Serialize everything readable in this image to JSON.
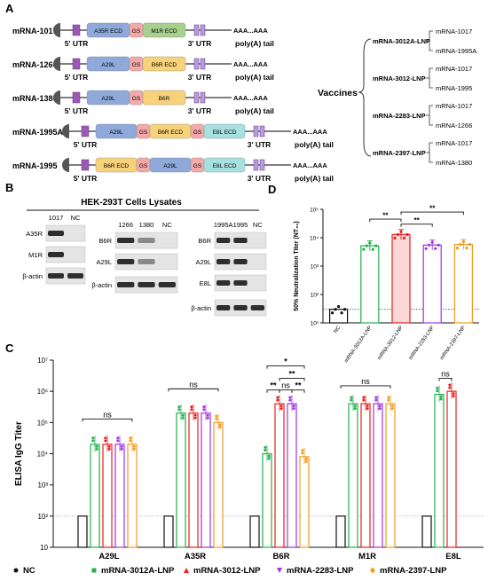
{
  "panels": {
    "A": "A",
    "B": "B",
    "C": "C",
    "D": "D"
  },
  "constructs": [
    {
      "name": "mRNA-1017",
      "segments": [
        {
          "label": "A35R ECD",
          "kind": "blue"
        },
        {
          "label": "GS",
          "kind": "gs"
        },
        {
          "label": "M1R ECD",
          "kind": "green"
        }
      ],
      "utr5": "5' UTR",
      "utr3": "3' UTR",
      "polyA": "AAA...AAA",
      "tail": "poly(A) tail"
    },
    {
      "name": "mRNA-1266",
      "segments": [
        {
          "label": "A29L",
          "kind": "blue"
        },
        {
          "label": "GS",
          "kind": "gs"
        },
        {
          "label": "B6R ECD",
          "kind": "yellow"
        }
      ],
      "utr5": "5' UTR",
      "utr3": "3' UTR",
      "polyA": "AAA...AAA",
      "tail": "poly(A) tail"
    },
    {
      "name": "mRNA-1380",
      "segments": [
        {
          "label": "A29L",
          "kind": "blue"
        },
        {
          "label": "GS",
          "kind": "gs"
        },
        {
          "label": "B6R",
          "kind": "yellow"
        }
      ],
      "utr5": "5' UTR",
      "utr3": "3' UTR",
      "polyA": "AAA...AAA",
      "tail": "poly(A) tail"
    },
    {
      "name": "mRNA-1995A",
      "segments": [
        {
          "label": "A29L",
          "kind": "blue"
        },
        {
          "label": "GS",
          "kind": "gs"
        },
        {
          "label": "B6R ECD",
          "kind": "yellow"
        },
        {
          "label": "GS",
          "kind": "gs"
        },
        {
          "label": "E8L ECD",
          "kind": "teal"
        }
      ],
      "utr5": "5' UTR",
      "utr3": "3' UTR",
      "polyA": "AAA...AAA",
      "tail": "poly(A) tail"
    },
    {
      "name": "mRNA-1995",
      "segments": [
        {
          "label": "B6R ECD",
          "kind": "yellow"
        },
        {
          "label": "GS",
          "kind": "gs"
        },
        {
          "label": "A29L",
          "kind": "blue"
        },
        {
          "label": "GS",
          "kind": "gs"
        },
        {
          "label": "E8L ECD",
          "kind": "teal"
        }
      ],
      "utr5": "5' UTR",
      "utr3": "3' UTR",
      "polyA": "AAA...AAA",
      "tail": "poly(A) tail"
    }
  ],
  "vaccines": {
    "label": "Vaccines",
    "groups": [
      {
        "name": "mRNA-3012A-LNP",
        "items": [
          "mRNA-1017",
          "mRNA-1995A"
        ]
      },
      {
        "name": "mRNA-3012-LNP",
        "items": [
          "mRNA-1017",
          "mRNA-1995"
        ]
      },
      {
        "name": "mRNA-2283-LNP",
        "items": [
          "mRNA-1017",
          "mRNA-1266"
        ]
      },
      {
        "name": "mRNA-2397-LNP",
        "items": [
          "mRNA-1017",
          "mRNA-1380"
        ]
      }
    ]
  },
  "blot": {
    "title": "HEK-293T Cells Lysates",
    "panels": [
      {
        "lanes": [
          "1017",
          "NC"
        ],
        "rows": [
          "A35R",
          "M1R",
          "β-actin"
        ]
      },
      {
        "lanes": [
          "1266",
          "1380",
          "NC"
        ],
        "rows": [
          "B6R",
          "A29L",
          "β-actin"
        ]
      },
      {
        "lanes": [
          "1995A",
          "1995",
          "NC"
        ],
        "rows": [
          "B6R",
          "A29L",
          "E8L",
          "β-actin"
        ]
      }
    ]
  },
  "colors": {
    "NC": "#111111",
    "mRNA-3012A-LNP": "#22b14c",
    "mRNA-3012-LNP": "#e8201f",
    "mRNA-2283-LNP": "#a034e0",
    "mRNA-2397-LNP": "#f39a1e"
  },
  "chart_data": [
    {
      "type": "bar",
      "panel": "C",
      "ylabel": "ELISA IgG Titer",
      "yscale": "log",
      "ylim": [
        10,
        10000000
      ],
      "yticks": [
        "10",
        "10²",
        "10³",
        "10⁴",
        "10⁵",
        "10⁶",
        "10⁷"
      ],
      "categories": [
        "A29L",
        "A35R",
        "B6R",
        "M1R",
        "E8L"
      ],
      "baseline": 100,
      "series": [
        {
          "name": "NC",
          "values": [
            100,
            100,
            100,
            100,
            100
          ]
        },
        {
          "name": "mRNA-3012A-LNP",
          "values": [
            20000,
            200000,
            10000,
            400000,
            800000
          ]
        },
        {
          "name": "mRNA-3012-LNP",
          "values": [
            20000,
            200000,
            400000,
            400000,
            1000000
          ]
        },
        {
          "name": "mRNA-2283-LNP",
          "values": [
            20000,
            200000,
            400000,
            400000,
            null
          ]
        },
        {
          "name": "mRNA-2397-LNP",
          "values": [
            20000,
            100000,
            8000,
            400000,
            null
          ]
        }
      ],
      "significance": [
        {
          "category": "A29L",
          "label": "ns"
        },
        {
          "category": "A35R",
          "label": "ns"
        },
        {
          "category": "B6R",
          "label": "*"
        },
        {
          "category": "B6R",
          "label": "**"
        },
        {
          "category": "B6R",
          "label": "**"
        },
        {
          "category": "B6R",
          "label": "ns"
        },
        {
          "category": "B6R",
          "label": "**"
        },
        {
          "category": "M1R",
          "label": "ns"
        },
        {
          "category": "E8L",
          "label": "ns"
        }
      ],
      "legend": "bottom"
    },
    {
      "type": "bar",
      "panel": "D",
      "ylabel": "50% Neutralization Titer (NT₅₀)",
      "yscale": "log",
      "ylim": [
        10,
        100000
      ],
      "yticks": [
        "10¹",
        "10²",
        "10³",
        "10⁴",
        "10⁵"
      ],
      "categories": [
        "NC",
        "mRNA-3012A-LNP",
        "mRNA-3012-LNP",
        "mRNA-2283-LNP",
        "mRNA-2397-LNP"
      ],
      "values": [
        30,
        5200,
        13000,
        5500,
        5800
      ],
      "baseline": 30,
      "significance": [
        "**",
        "**",
        "**"
      ]
    }
  ],
  "legend": [
    "NC",
    "mRNA-3012A-LNP",
    "mRNA-3012-LNP",
    "mRNA-2283-LNP",
    "mRNA-2397-LNP"
  ]
}
